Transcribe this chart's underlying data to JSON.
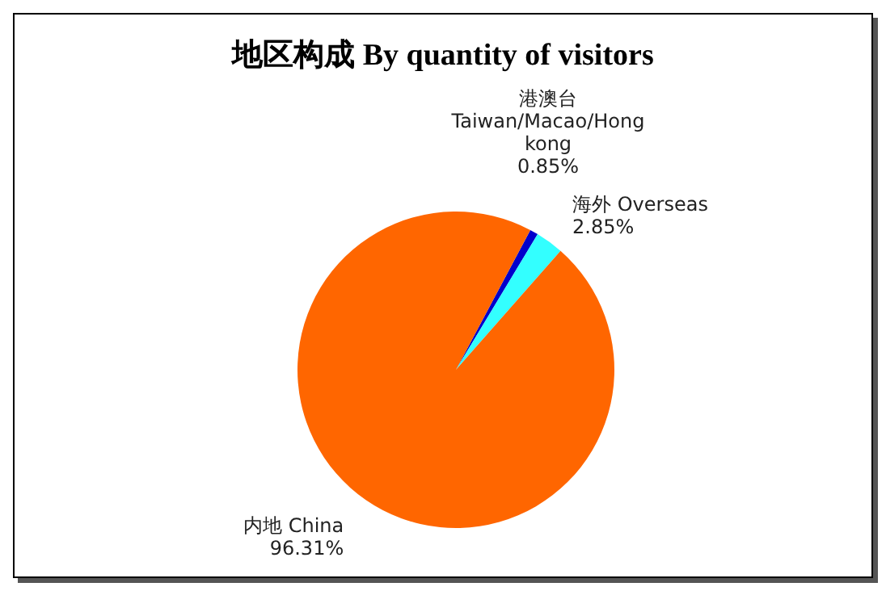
{
  "chart_data": {
    "type": "pie",
    "title": "地区构成 By quantity of visitors",
    "categories": [
      "港澳台 Taiwan/Macao/Hong kong",
      "海外 Overseas",
      "内地 China"
    ],
    "values": [
      0.85,
      2.85,
      96.31
    ],
    "value_labels": [
      "0.85%",
      "2.85%",
      "96.31%"
    ],
    "colors": [
      "#0000cc",
      "#33ffff",
      "#ff6600"
    ],
    "legend": false
  }
}
